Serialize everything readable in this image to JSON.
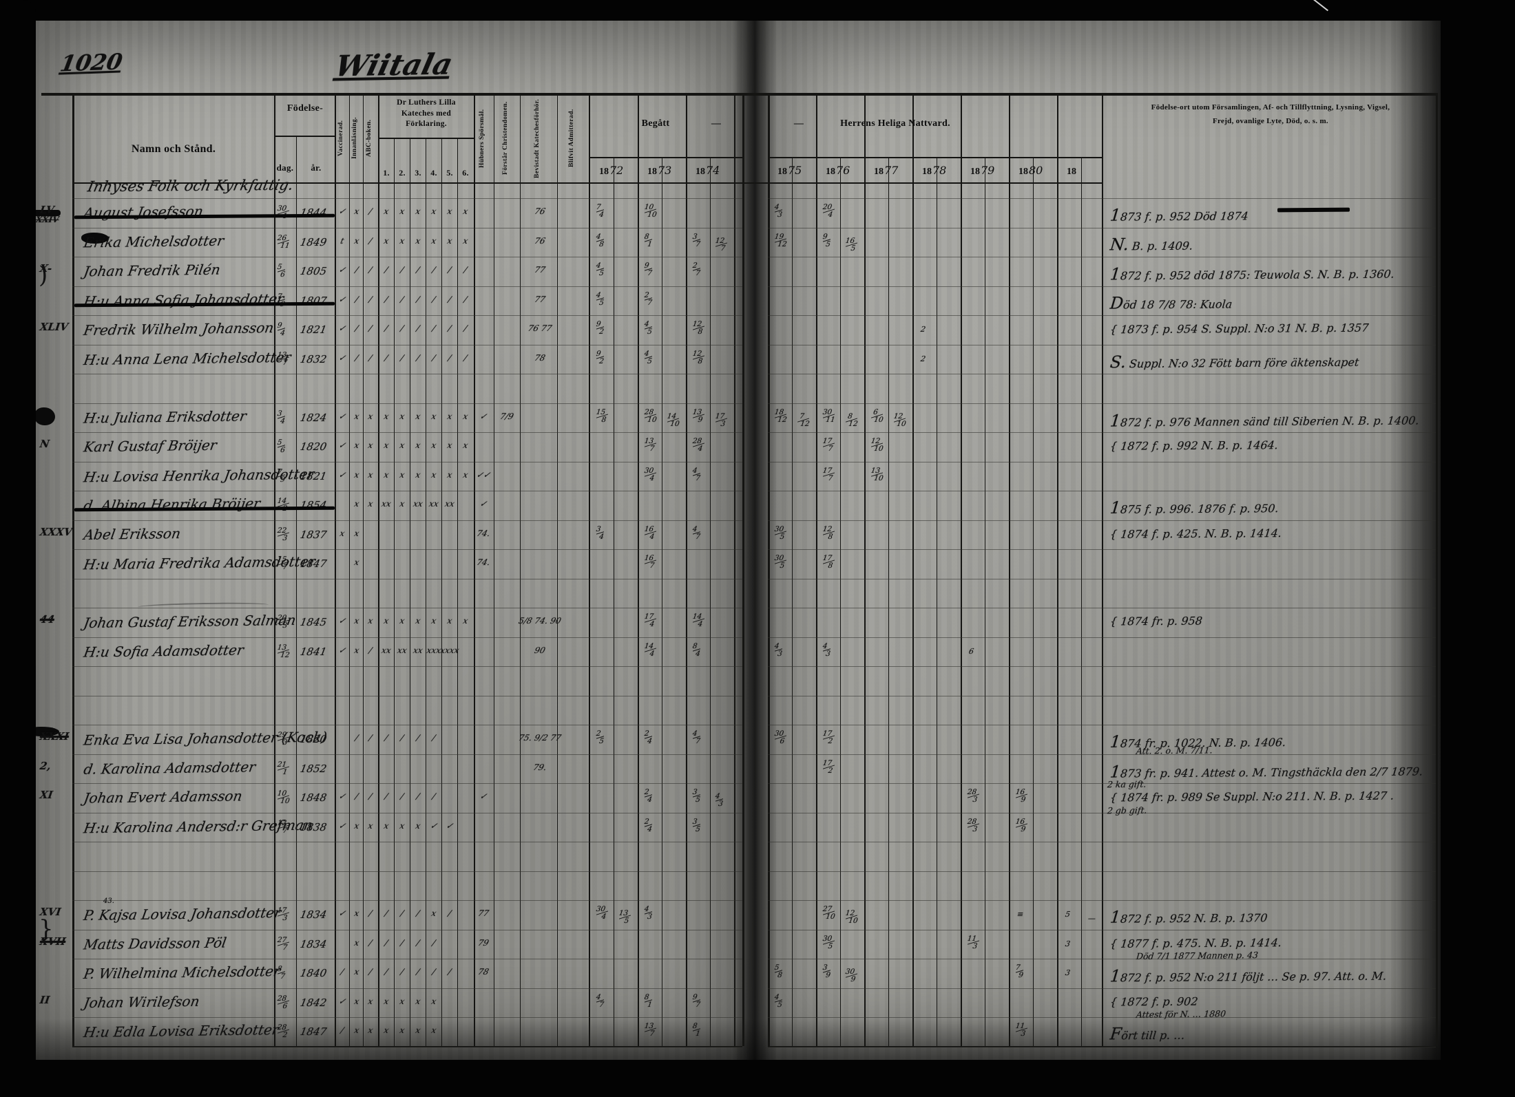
{
  "page": {
    "number": "1020",
    "title": "Wiitala"
  },
  "header": {
    "namn": "Namn och Stånd.",
    "fodelse": "Födelse-",
    "dag": "dag.",
    "ar": "år.",
    "kateches": "Dr Luthers Lilla Kateches med Förklaring.",
    "kateches_cols": [
      "1.",
      "2.",
      "3.",
      "4.",
      "5.",
      "6."
    ],
    "vertical": [
      "Vaccinerad.",
      "Innanläsning.",
      "ABC-boken.",
      "Hübners Spörsmål.",
      "Förstår Christendomen.",
      "Bevistadt Katechesförhör.",
      "Blifvit Admitterad."
    ],
    "begatt": "Begått",
    "dash_left": "—",
    "dash_right": "—",
    "nattvard": "Herrens Heliga Nattvard.",
    "year_prefix": "18",
    "left_years": [
      "72",
      "73",
      "74"
    ],
    "right_years": [
      "75",
      "76",
      "77",
      "78",
      "79",
      "80",
      ""
    ],
    "annotation_line1": "Födelse-ort utom Församlingen, Af- och Tillflyttning, Lysning, Vigsel,",
    "annotation_line2": "Frejd, ovanlige Lyte, Död, o. s. m."
  },
  "section_heading": "Inhyses Folk och Kyrkfattig.",
  "rows": [
    {
      "margin": "LV",
      "margin_sub": "XXIV",
      "name": "August Josefsson",
      "struck": true,
      "dag": "30/1",
      "ar": "1844",
      "marks": [
        "✓",
        "x",
        "/",
        "x",
        "x",
        "x",
        "x",
        "x",
        "x",
        "",
        "",
        "76",
        ""
      ],
      "comm": {
        "72": "7/4",
        "73": "10/10",
        "75": "4/3",
        "76": "20/4"
      },
      "note": "1873 f. p. 952    Död 1874",
      "note_dash": true
    },
    {
      "margin": "",
      "name": "Erika Michelsdotter",
      "dag": "26/11",
      "ar": "1849",
      "marks": [
        "t",
        "x",
        "/",
        "x",
        "x",
        "x",
        "x",
        "x",
        "x",
        "",
        "",
        "76",
        ""
      ],
      "comm": {
        "72": "4/8",
        "73": "8/1",
        "74": "3/7 12/7",
        "75": "19/12",
        "76": "9/5 16/5"
      },
      "note": "N. B. p. 1409."
    },
    {
      "margin": "X-",
      "name": "Johan Fredrik Pilén",
      "dag": "5/6",
      "ar": "1805",
      "marks": [
        "✓",
        "/",
        "/",
        "/",
        "/",
        "/",
        "/",
        "/",
        "/",
        "",
        "",
        "77",
        ""
      ],
      "comm": {
        "72": "4/5",
        "73": "9/7",
        "74": "2/7"
      },
      "note": "1872 f. p. 952    död 1875: Teuwola S.   N. B. p. 1360."
    },
    {
      "margin": "",
      "name": "H:u Anna Sofia Johansdotter",
      "struck": true,
      "dag": "7/9",
      "ar": "1807",
      "marks": [
        "✓",
        "/",
        "/",
        "/",
        "/",
        "/",
        "/",
        "/",
        "/",
        "",
        "",
        "77",
        ""
      ],
      "comm": {
        "72": "4/5",
        "73": "2/7"
      },
      "note": "Död 18 7/8 78: Kuola"
    },
    {
      "margin": "XLIV",
      "name": "Fredrik Wilhelm Johansson",
      "dag": "9/4",
      "ar": "1821",
      "marks": [
        "✓",
        "/",
        "/",
        "/",
        "/",
        "/",
        "/",
        "/",
        "/",
        "",
        "",
        "76 77",
        ""
      ],
      "comm": {
        "72": "9/2",
        "73": "4/5",
        "74": "12/8",
        "78": "2"
      },
      "note": "{ 1873 f. p. 954    S. Suppl. N:o 31    N. B. p. 1357"
    },
    {
      "margin": "",
      "name": "H:u Anna Lena Michelsdotter",
      "dag": "13/7",
      "ar": "1832",
      "marks": [
        "✓",
        "/",
        "/",
        "/",
        "/",
        "/",
        "/",
        "/",
        "/",
        "",
        "",
        "78",
        ""
      ],
      "comm": {
        "72": "9/2",
        "73": "4/5",
        "74": "12/8",
        "78": "2"
      },
      "note": "S. Suppl. N:o 32    Fött barn före äktenskapet"
    },
    {
      "name": ""
    },
    {
      "margin": "",
      "name": "H:u Juliana Eriksdotter",
      "dag": "3/4",
      "ar": "1824",
      "marks": [
        "✓",
        "x",
        "x",
        "x",
        "x",
        "x",
        "x",
        "x",
        "x",
        "✓",
        "7/9",
        "",
        ""
      ],
      "comm": {
        "72": "15/8",
        "73": "28/10 14/10",
        "74": "13/9 17/3",
        "75": "18/12 7/12",
        "76": "30/11 8/12",
        "77": "6/10 12/10"
      },
      "note": "1872 f. p. 976   Mannen sänd till Siberien   N. B. p. 1400."
    },
    {
      "margin": "N",
      "name": "Karl Gustaf Bröijer",
      "dag": "5/6",
      "ar": "1820",
      "marks": [
        "✓",
        "x",
        "x",
        "x",
        "x",
        "x",
        "x",
        "x",
        "x",
        "",
        "",
        "",
        ""
      ],
      "comm": {
        "73": "13/7",
        "74": "28/4",
        "76": "17/7",
        "77": "12/10"
      },
      "note": "{ 1872 f. p. 992   N. B. p. 1464."
    },
    {
      "margin": "",
      "name": "H:u Lovisa Henrika Johansdotter",
      "dag": "7/9",
      "ar": "1821",
      "marks": [
        "✓",
        "x",
        "x",
        "x",
        "x",
        "x",
        "x",
        "x",
        "x",
        "✓✓",
        "",
        "",
        ""
      ],
      "comm": {
        "73": "30/4",
        "74": "4/7",
        "76": "17/7",
        "77": "13/10"
      },
      "note": ""
    },
    {
      "margin": "",
      "name": "d. Albina Henrika Bröijer",
      "struck": true,
      "dag": "14/2",
      "ar": "1854",
      "marks": [
        "",
        "x",
        "x",
        "xx",
        "x",
        "xx",
        "xx",
        "xx",
        "",
        "✓",
        "",
        "",
        ""
      ],
      "comm": {},
      "note": "1875 f. p. 996. 1876 f. p. 950."
    },
    {
      "margin": "XXXV",
      "name": "Abel Eriksson",
      "dag": "22/3",
      "ar": "1837",
      "marks": [
        "x",
        "x",
        "",
        "",
        "",
        "",
        "",
        "",
        "",
        "74.",
        "",
        "",
        ""
      ],
      "comm": {
        "72": "3/4",
        "73": "16/4",
        "74": "4/7",
        "75": "30/5",
        "76": "12/8"
      },
      "note": "{ 1874 f. p. 425.   N. B. p. 1414."
    },
    {
      "margin": "",
      "name": "H:u Maria Fredrika Adamsdotter",
      "dag": "15/7",
      "ar": "1847",
      "marks": [
        "",
        "x",
        "",
        "",
        "",
        "",
        "",
        "",
        "",
        "74.",
        "",
        "",
        ""
      ],
      "comm": {
        "73": "16/7",
        "75": "30/5",
        "76": "17/8"
      },
      "note": ""
    },
    {
      "name": ""
    },
    {
      "margin": "44",
      "margin_struck": true,
      "name": "Johan Gustaf Eriksson Salman",
      "dag": "20/3",
      "ar": "1845",
      "marks": [
        "✓",
        "x",
        "x",
        "x",
        "x",
        "x",
        "x",
        "x",
        "x",
        "",
        "",
        "5/8 74. 90",
        ""
      ],
      "comm": {
        "73": "17/4",
        "74": "14/4"
      },
      "note": "{ 1874 fr. p. 958"
    },
    {
      "margin": "",
      "name": "H:u Sofia Adamsdotter",
      "dag": "13/12",
      "ar": "1841",
      "marks": [
        "✓",
        "x",
        "/",
        "xx",
        "xx",
        "xx",
        "xxx",
        "xxxx",
        "",
        "",
        "",
        "90",
        ""
      ],
      "comm": {
        "73": "14/4",
        "74": "8/4",
        "75": "4/3",
        "76": "4/3",
        "79": "6"
      },
      "note": ""
    },
    {
      "name": ""
    },
    {
      "name": ""
    },
    {
      "margin": "XXXI",
      "margin_struck": true,
      "name": "Enka Eva Lisa Johansdotter (Kock)",
      "dag": "29/3",
      "ar": "1820",
      "marks": [
        "",
        "/",
        "/",
        "/",
        "/",
        "/",
        "/",
        "",
        "",
        "",
        "",
        "75. 9/2 77",
        ""
      ],
      "comm": {
        "72": "2/5",
        "73": "2/4",
        "74": "4/7",
        "75": "30/6",
        "76": "17/2"
      },
      "note": "1874 fr. p. 1022.     N. B. p. 1406.",
      "note2": "Att. 2. o. M. 7/11."
    },
    {
      "margin": "2,",
      "name": "d. Karolina Adamsdotter",
      "dag": "21/1",
      "ar": "1852",
      "marks": [
        "",
        "",
        "",
        "",
        "",
        "",
        "",
        "",
        "",
        "",
        "",
        "79.",
        ""
      ],
      "comm": {
        "76": "17/2"
      },
      "note": "1873 fr. p. 941. Attest o. M. Tingsthäckla den 2/7 1879."
    },
    {
      "margin": "XI",
      "name": "Johan Evert Adamsson",
      "dag": "10/10",
      "ar": "1848",
      "marks": [
        "✓",
        "/",
        "/",
        "/",
        "/",
        "/",
        "/",
        "",
        "",
        "✓",
        "",
        "",
        ""
      ],
      "comm": {
        "73": "2/4",
        "74": "3/5 4/3",
        "79": "28/3",
        "80": "16/9"
      },
      "note": "{ 1874 fr. p. 989      Se Suppl. N:o 211.   N. B. p. 1427 .",
      "note_above": "2 ka gift.",
      "note_below": "2 gb gift."
    },
    {
      "margin": "",
      "name": "H:u Karolina Andersd:r Grefman",
      "dag": "12/7",
      "ar": "1838",
      "marks": [
        "✓",
        "x",
        "x",
        "x",
        "x",
        "x",
        "✓",
        "✓",
        "",
        "",
        "",
        "",
        ""
      ],
      "comm": {
        "73": "2/4",
        "74": "3/5",
        "79": "28/3",
        "80": "16/9"
      },
      "note": ""
    },
    {
      "name": ""
    },
    {
      "name": ""
    },
    {
      "margin": "XVI",
      "super": "43.",
      "name": "P. Kajsa Lovisa Johansdotter",
      "dag": "17/3",
      "ar": "1834",
      "marks": [
        "✓",
        "x",
        "/",
        "/",
        "/",
        "/",
        "x",
        "/",
        "",
        "77",
        "",
        "",
        ""
      ],
      "comm": {
        "72": "30/4 13/5",
        "73": "4/3",
        "76": "27/10 12/10",
        "80": "≡",
        "xx": "5  —"
      },
      "note": "1872 f. p. 952    N. B. p. 1370"
    },
    {
      "margin": "XVII",
      "margin_struck": true,
      "name": "Matts Davidsson Pöl",
      "dag": "27/7",
      "ar": "1834",
      "marks": [
        "",
        "x",
        "/",
        "/",
        "/",
        "/",
        "/",
        "",
        "",
        "79",
        "",
        "",
        ""
      ],
      "comm": {
        "76": "30/5",
        "79": "11/3",
        "xx": "3"
      },
      "note": "{ 1877 f. p. 475.   N. B. p. 1414.",
      "note2": "Död 7/1 1877 Mannen p. 43"
    },
    {
      "margin": "",
      "name": "P. Wilhelmina Michelsdotter",
      "dag": "8/7",
      "ar": "1840",
      "marks": [
        "/",
        "x",
        "/",
        "/",
        "/",
        "/",
        "/",
        "/",
        "",
        "78",
        "",
        "",
        ""
      ],
      "comm": {
        "75": "5/8",
        "76": "3/9 30/9",
        "80": "7/9",
        "xx": "3"
      },
      "note": "1872 f. p. 952  N:o 211 följt … Se p. 97.   Att. o. M."
    },
    {
      "margin": "II",
      "name": "Johan Wirilefson",
      "dag": "28/6",
      "ar": "1842",
      "marks": [
        "✓",
        "x",
        "x",
        "x",
        "x",
        "x",
        "x",
        "",
        "",
        "",
        "",
        "",
        ""
      ],
      "comm": {
        "72": "4/7",
        "73": "8/1",
        "74": "9/7",
        "75": "4/5"
      },
      "note": "{ 1872 f. p. 902",
      "note2": "Attest för N. … 1880"
    },
    {
      "margin": "",
      "name": "H:u Edla Lovisa Eriksdotter",
      "dag": "28/2",
      "ar": "1847",
      "marks": [
        "/",
        "x",
        "x",
        "x",
        "x",
        "x",
        "x",
        "",
        "",
        "",
        "",
        "",
        ""
      ],
      "comm": {
        "73": "13/7",
        "74": "8/1",
        "80": "11/3"
      },
      "note": "Fört till p. …"
    }
  ]
}
